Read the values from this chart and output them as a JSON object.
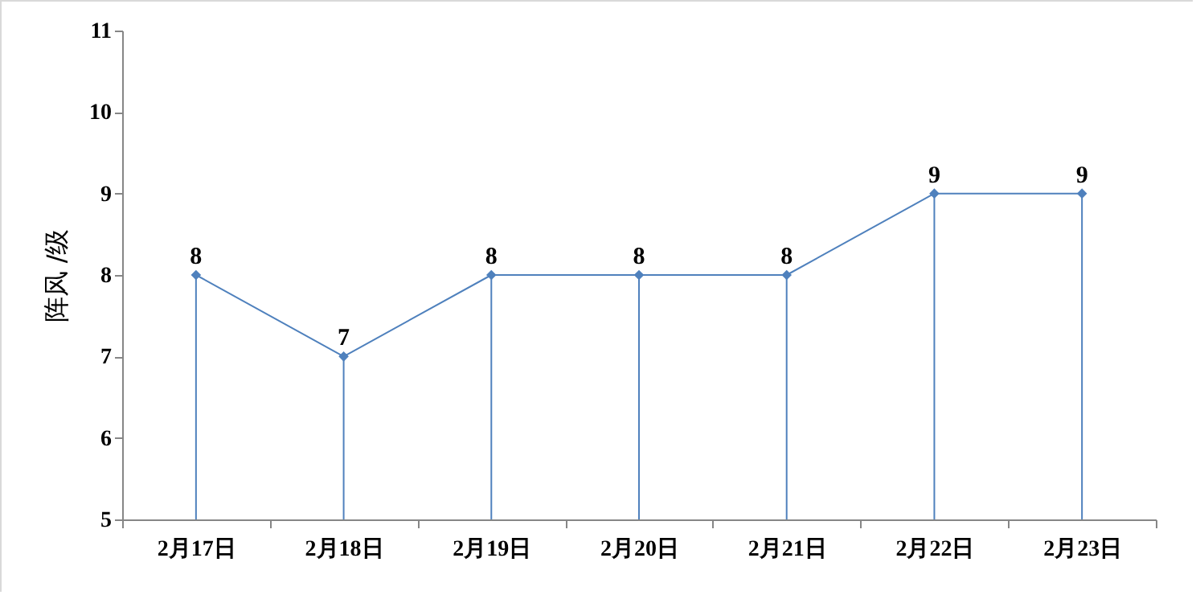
{
  "chart_data": {
    "type": "line",
    "ylabel": "阵风 /级",
    "categories": [
      "2月17日",
      "2月18日",
      "2月19日",
      "2月20日",
      "2月21日",
      "2月22日",
      "2月23日"
    ],
    "series": [
      {
        "color": "#4f81bd",
        "values": [
          8,
          7,
          8,
          8,
          8,
          9,
          9
        ]
      }
    ],
    "ylim": [
      5,
      11
    ],
    "yticks": [
      5,
      6,
      7,
      8,
      9,
      10,
      11
    ],
    "grid": false,
    "marker": "diamond",
    "data_labels": true
  }
}
